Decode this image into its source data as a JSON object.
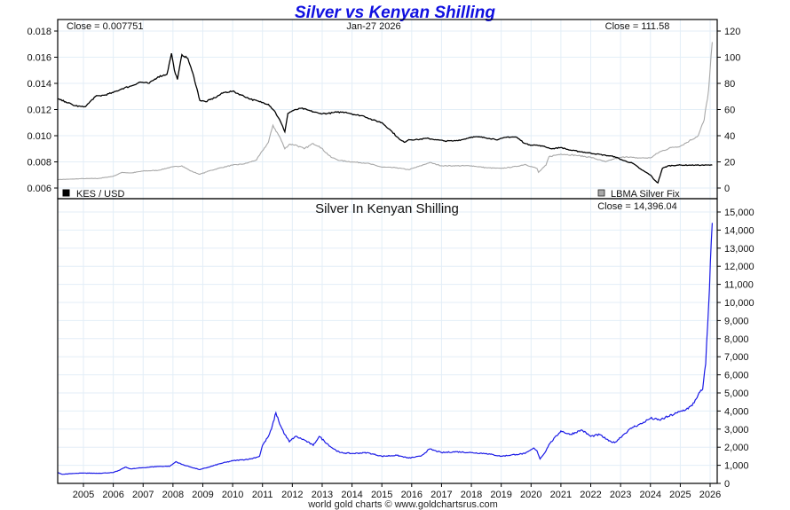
{
  "title": "Silver vs Kenyan Shilling",
  "footer": "world gold charts © www.goldchartsrus.com",
  "upper_panel": {
    "close_left": "Close = 0.007751",
    "date": "Jan-27  2026",
    "close_right": "Close = 111.58",
    "legend_left": "KES / USD",
    "legend_right": "LBMA Silver Fix"
  },
  "lower_panel": {
    "subtitle": "Silver In Kenyan Shilling",
    "close": "Close = 14,396.04"
  },
  "colors": {
    "kes_usd": "#000000",
    "silver_usd": "#a8a8a8",
    "silver_kes": "#1a1ae6",
    "title": "#1010e0",
    "grid": "#e3eef7"
  },
  "chart_data": [
    {
      "type": "line",
      "title": "Silver vs Kenyan Shilling",
      "xlabel": "",
      "x_ticks": [
        "2005",
        "2006",
        "2007",
        "2008",
        "2009",
        "2010",
        "2011",
        "2012",
        "2013",
        "2014",
        "2015",
        "2016",
        "2017",
        "2018",
        "2019",
        "2020",
        "2021",
        "2022",
        "2023",
        "2024",
        "2025",
        "2026"
      ],
      "xlim": [
        2004.14,
        2026.25
      ],
      "y_left": {
        "label": "KES / USD",
        "ylim": [
          0.0055,
          0.0185
        ],
        "ticks": [
          "0.006",
          "0.008",
          "0.010",
          "0.012",
          "0.014",
          "0.016",
          "0.018"
        ]
      },
      "y_right": {
        "label": "LBMA Silver Fix",
        "ylim": [
          -6,
          122
        ],
        "ticks": [
          "0",
          "20",
          "40",
          "60",
          "80",
          "100",
          "120"
        ]
      },
      "grid": true,
      "legend": [
        "bottom-left: KES / USD",
        "bottom-right: LBMA Silver Fix"
      ],
      "series": [
        {
          "name": "KES / USD",
          "axis": "left",
          "x": [
            2004.14,
            2004.4,
            2004.7,
            2005.0,
            2005.1,
            2005.4,
            2005.7,
            2006.0,
            2006.3,
            2006.6,
            2006.9,
            2007.2,
            2007.5,
            2007.8,
            2007.95,
            2008.05,
            2008.15,
            2008.3,
            2008.5,
            2008.7,
            2008.9,
            2009.1,
            2009.4,
            2009.7,
            2010.0,
            2010.3,
            2010.6,
            2010.9,
            2011.2,
            2011.4,
            2011.6,
            2011.75,
            2011.85,
            2012.0,
            2012.3,
            2012.6,
            2012.9,
            2013.2,
            2013.5,
            2013.8,
            2014.1,
            2014.4,
            2014.7,
            2015.0,
            2015.3,
            2015.6,
            2015.75,
            2015.9,
            2016.2,
            2016.5,
            2016.8,
            2017.1,
            2017.4,
            2017.7,
            2018.0,
            2018.3,
            2018.6,
            2018.9,
            2019.2,
            2019.5,
            2019.8,
            2019.95,
            2020.1,
            2020.4,
            2020.7,
            2021.0,
            2021.3,
            2021.6,
            2021.9,
            2022.2,
            2022.5,
            2022.8,
            2023.1,
            2023.4,
            2023.7,
            2024.0,
            2024.1,
            2024.25,
            2024.4,
            2024.6,
            2024.9,
            2025.3,
            2025.7,
            2026.07
          ],
          "values": [
            0.0128,
            0.0126,
            0.0123,
            0.0122,
            0.0123,
            0.013,
            0.0131,
            0.0133,
            0.0136,
            0.0138,
            0.0141,
            0.014,
            0.0145,
            0.0147,
            0.0163,
            0.015,
            0.0143,
            0.0162,
            0.0159,
            0.0145,
            0.0127,
            0.0126,
            0.0129,
            0.0133,
            0.0134,
            0.0131,
            0.0128,
            0.0126,
            0.0124,
            0.0119,
            0.0111,
            0.0103,
            0.0117,
            0.0119,
            0.0121,
            0.0119,
            0.0117,
            0.0117,
            0.0118,
            0.0118,
            0.0116,
            0.0115,
            0.0112,
            0.011,
            0.0104,
            0.0097,
            0.0095,
            0.0097,
            0.0097,
            0.0098,
            0.0097,
            0.0096,
            0.0096,
            0.0097,
            0.0099,
            0.0099,
            0.0098,
            0.0097,
            0.0099,
            0.0099,
            0.0094,
            0.0093,
            0.0093,
            0.0092,
            0.009,
            0.0091,
            0.0089,
            0.0088,
            0.0087,
            0.0086,
            0.0085,
            0.0084,
            0.0081,
            0.0079,
            0.0074,
            0.007,
            0.0067,
            0.0064,
            0.0075,
            0.0077,
            0.00775,
            0.00775,
            0.00775,
            0.007751
          ]
        },
        {
          "name": "LBMA Silver Fix",
          "axis": "right",
          "x": [
            2004.14,
            2004.5,
            2005.0,
            2005.5,
            2006.0,
            2006.3,
            2006.6,
            2007.0,
            2007.5,
            2007.9,
            2008.3,
            2008.6,
            2008.9,
            2009.2,
            2009.6,
            2010.0,
            2010.4,
            2010.8,
            2011.0,
            2011.2,
            2011.35,
            2011.6,
            2011.75,
            2011.9,
            2012.1,
            2012.4,
            2012.7,
            2012.9,
            2013.3,
            2013.6,
            2014.0,
            2014.5,
            2015.0,
            2015.5,
            2015.9,
            2016.3,
            2016.6,
            2017.0,
            2017.5,
            2018.0,
            2018.5,
            2019.0,
            2019.5,
            2019.8,
            2020.2,
            2020.25,
            2020.5,
            2020.6,
            2021.0,
            2021.5,
            2022.0,
            2022.5,
            2022.8,
            2023.2,
            2023.5,
            2024.0,
            2024.3,
            2024.7,
            2025.0,
            2025.3,
            2025.6,
            2025.8,
            2025.95,
            2026.07
          ],
          "values": [
            6.5,
            6.7,
            7.2,
            7.3,
            9.0,
            12.0,
            11.5,
            13.0,
            13.5,
            15.8,
            17.0,
            13.0,
            10.5,
            13.0,
            15.5,
            17.5,
            18.5,
            21.5,
            28.5,
            35.0,
            48.0,
            38.0,
            30.0,
            33.5,
            33.0,
            30.0,
            34.0,
            32.0,
            23.5,
            21.0,
            20.0,
            19.0,
            16.0,
            15.5,
            14.0,
            17.0,
            19.5,
            17.0,
            17.0,
            17.0,
            15.5,
            15.0,
            16.5,
            18.0,
            15.0,
            12.0,
            17.5,
            24.0,
            26.0,
            25.0,
            23.5,
            20.0,
            22.5,
            24.0,
            23.0,
            23.0,
            27.5,
            31.0,
            32.0,
            36.0,
            40.0,
            52.0,
            75.0,
            111.58
          ]
        }
      ]
    },
    {
      "type": "line",
      "title": "Silver In Kenyan Shilling",
      "xlabel": "",
      "x_ticks": [
        "2005",
        "2006",
        "2007",
        "2008",
        "2009",
        "2010",
        "2011",
        "2012",
        "2013",
        "2014",
        "2015",
        "2016",
        "2017",
        "2018",
        "2019",
        "2020",
        "2021",
        "2022",
        "2023",
        "2024",
        "2025",
        "2026"
      ],
      "xlim": [
        2004.14,
        2026.25
      ],
      "ylabel": "",
      "ylim": [
        0,
        15000
      ],
      "y_ticks": [
        "0",
        "1,000",
        "2,000",
        "3,000",
        "4,000",
        "5,000",
        "6,000",
        "7,000",
        "8,000",
        "9,000",
        "10,000",
        "11,000",
        "12,000",
        "13,000",
        "14,000",
        "15,000"
      ],
      "grid": true,
      "series": [
        {
          "name": "Silver In Kenyan Shilling",
          "x": [
            2004.14,
            2004.3,
            2004.6,
            2005.0,
            2005.5,
            2006.0,
            2006.2,
            2006.4,
            2006.6,
            2007.0,
            2007.5,
            2007.9,
            2008.1,
            2008.3,
            2008.6,
            2008.9,
            2009.2,
            2009.6,
            2010.0,
            2010.3,
            2010.6,
            2010.9,
            2011.0,
            2011.2,
            2011.3,
            2011.45,
            2011.6,
            2011.75,
            2011.9,
            2012.1,
            2012.4,
            2012.7,
            2012.9,
            2013.3,
            2013.6,
            2014.0,
            2014.5,
            2015.0,
            2015.5,
            2015.9,
            2016.3,
            2016.6,
            2017.0,
            2017.5,
            2018.0,
            2018.5,
            2019.0,
            2019.5,
            2019.8,
            2020.1,
            2020.2,
            2020.3,
            2020.5,
            2020.6,
            2021.0,
            2021.3,
            2021.7,
            2022.0,
            2022.3,
            2022.6,
            2022.8,
            2023.1,
            2023.4,
            2023.7,
            2024.0,
            2024.3,
            2024.6,
            2024.9,
            2025.2,
            2025.4,
            2025.6,
            2025.75,
            2025.85,
            2025.95,
            2026.07
          ],
          "values": [
            600,
            500,
            540,
            570,
            560,
            600,
            720,
            900,
            800,
            870,
            940,
            950,
            1200,
            1050,
            900,
            760,
            900,
            1100,
            1250,
            1300,
            1350,
            1500,
            2100,
            2600,
            3000,
            3900,
            3200,
            2700,
            2300,
            2600,
            2400,
            2100,
            2600,
            2000,
            1700,
            1650,
            1700,
            1500,
            1550,
            1400,
            1500,
            1900,
            1700,
            1750,
            1700,
            1650,
            1500,
            1600,
            1650,
            1950,
            1800,
            1350,
            1800,
            2150,
            2900,
            2700,
            2950,
            2600,
            2700,
            2350,
            2250,
            2700,
            3100,
            3300,
            3600,
            3500,
            3700,
            3900,
            4100,
            4300,
            4900,
            5200,
            6600,
            9800,
            14396.04
          ]
        }
      ]
    }
  ]
}
